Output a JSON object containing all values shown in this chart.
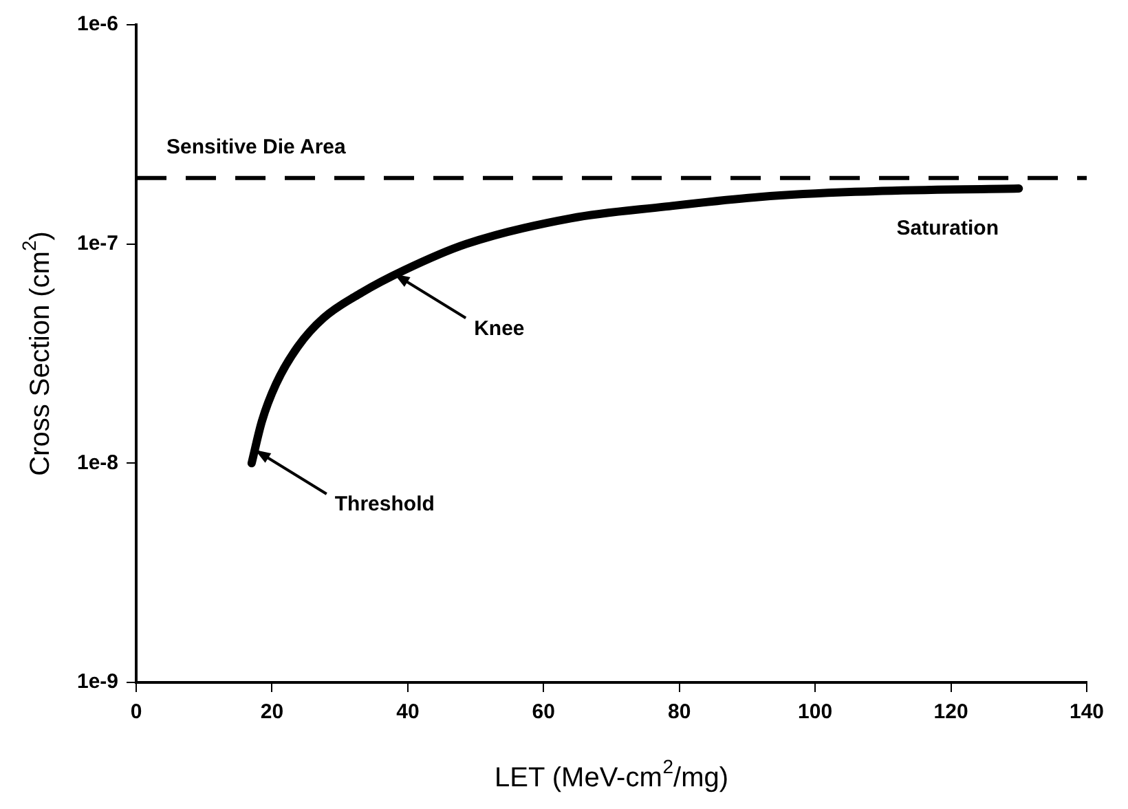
{
  "chart_data": {
    "type": "line",
    "xlabel": "LET (MeV-cm$^{2}$/mg)",
    "ylabel": "Cross Section (cm$^{2}$)",
    "series": [
      {
        "color": "#000000",
        "x": [
          17,
          18.5,
          20.6,
          23.8,
          27.6,
          33.2,
          39.5,
          48.6,
          64,
          77.9,
          91.9,
          105.9,
          130
        ],
        "values": [
          1e-08,
          1.55e-08,
          2.3e-08,
          3.4e-08,
          4.6e-08,
          6e-08,
          7.6e-08,
          1e-07,
          1.31e-07,
          1.48e-07,
          1.64e-07,
          1.73e-07,
          1.79e-07
        ]
      }
    ],
    "log": "y",
    "xlim": [
      0,
      140
    ],
    "xticks": [
      0,
      20,
      40,
      60,
      80,
      100,
      120,
      140
    ],
    "ylim": [
      1e-09,
      1e-06
    ],
    "yticks": [
      {
        "value": 1e-09,
        "label": "1e-9"
      },
      {
        "value": 1e-08,
        "label": "1e-8"
      },
      {
        "value": 1e-07,
        "label": "1e-7"
      },
      {
        "value": 1e-06,
        "label": "1e-6"
      }
    ],
    "ref_lines": [
      {
        "axis": "y",
        "value": 2e-07,
        "label": "Sensitive Die Area",
        "color": "#000000",
        "line_style": "dashed"
      }
    ],
    "annotations": [
      {
        "text": "Knee",
        "x": 38,
        "y": 7.3e-08
      },
      {
        "text": "Threshold",
        "x": 17.5,
        "y": 1.15e-08
      },
      "Saturation"
    ],
    "grid": false,
    "legend": false,
    "marker": "none",
    "line_style": "solid"
  }
}
